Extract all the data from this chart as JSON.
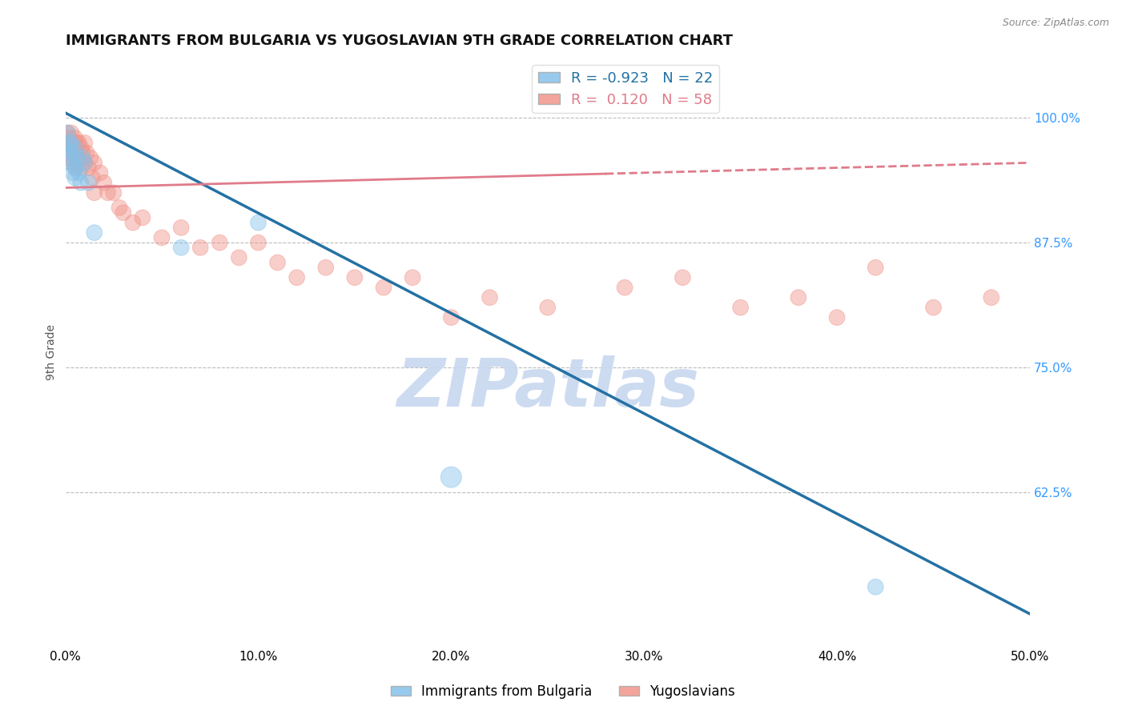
{
  "title": "IMMIGRANTS FROM BULGARIA VS YUGOSLAVIAN 9TH GRADE CORRELATION CHART",
  "source_text": "Source: ZipAtlas.com",
  "ylabel": "9th Grade",
  "xlim": [
    0.0,
    0.5
  ],
  "ylim": [
    0.47,
    1.06
  ],
  "xtick_labels": [
    "0.0%",
    "10.0%",
    "20.0%",
    "30.0%",
    "40.0%",
    "50.0%"
  ],
  "xtick_vals": [
    0.0,
    0.1,
    0.2,
    0.3,
    0.4,
    0.5
  ],
  "ytick_labels_right": [
    "62.5%",
    "75.0%",
    "87.5%",
    "100.0%"
  ],
  "ytick_vals_right": [
    0.625,
    0.75,
    0.875,
    1.0
  ],
  "hline_vals": [
    0.625,
    0.75,
    0.875,
    1.0
  ],
  "legend_r_blue": "-0.923",
  "legend_n_blue": "22",
  "legend_r_pink": "0.120",
  "legend_n_pink": "58",
  "blue_color": "#85c1e9",
  "pink_color": "#f1948a",
  "blue_line_color": "#2471a3",
  "pink_line_color": "#e07b8a",
  "watermark": "ZIPatlas",
  "watermark_color": "#c8d8f0",
  "blue_line_x0": 0.0,
  "blue_line_y0": 1.005,
  "blue_line_x1": 0.5,
  "blue_line_y1": 0.503,
  "pink_line_solid_x0": 0.0,
  "pink_line_solid_y0": 0.93,
  "pink_line_solid_x1": 0.28,
  "pink_line_solid_y1": 0.944,
  "pink_line_dash_x0": 0.28,
  "pink_line_dash_y0": 0.944,
  "pink_line_dash_x1": 0.5,
  "pink_line_dash_y1": 0.955,
  "blue_scatter_x": [
    0.001,
    0.001,
    0.002,
    0.002,
    0.003,
    0.003,
    0.004,
    0.004,
    0.005,
    0.005,
    0.005,
    0.006,
    0.007,
    0.008,
    0.009,
    0.01,
    0.012,
    0.015,
    0.06,
    0.1,
    0.2,
    0.42
  ],
  "blue_scatter_y": [
    0.97,
    0.985,
    0.975,
    0.96,
    0.975,
    0.955,
    0.965,
    0.945,
    0.97,
    0.95,
    0.94,
    0.96,
    0.945,
    0.935,
    0.96,
    0.955,
    0.935,
    0.885,
    0.87,
    0.895,
    0.64,
    0.53
  ],
  "blue_scatter_sizes": [
    200,
    200,
    200,
    200,
    200,
    200,
    200,
    200,
    200,
    200,
    200,
    200,
    200,
    200,
    200,
    200,
    200,
    200,
    200,
    200,
    350,
    200
  ],
  "pink_scatter_x": [
    0.001,
    0.001,
    0.002,
    0.002,
    0.003,
    0.003,
    0.003,
    0.004,
    0.004,
    0.005,
    0.005,
    0.005,
    0.006,
    0.006,
    0.007,
    0.007,
    0.008,
    0.008,
    0.009,
    0.01,
    0.01,
    0.011,
    0.012,
    0.013,
    0.014,
    0.015,
    0.015,
    0.018,
    0.02,
    0.022,
    0.025,
    0.028,
    0.03,
    0.035,
    0.04,
    0.05,
    0.06,
    0.07,
    0.08,
    0.09,
    0.1,
    0.11,
    0.12,
    0.135,
    0.15,
    0.165,
    0.18,
    0.2,
    0.22,
    0.25,
    0.29,
    0.32,
    0.35,
    0.38,
    0.4,
    0.42,
    0.45,
    0.48
  ],
  "pink_scatter_y": [
    0.975,
    0.985,
    0.98,
    0.965,
    0.97,
    0.985,
    0.96,
    0.975,
    0.955,
    0.98,
    0.965,
    0.95,
    0.975,
    0.955,
    0.975,
    0.96,
    0.97,
    0.95,
    0.965,
    0.975,
    0.955,
    0.965,
    0.95,
    0.96,
    0.94,
    0.955,
    0.925,
    0.945,
    0.935,
    0.925,
    0.925,
    0.91,
    0.905,
    0.895,
    0.9,
    0.88,
    0.89,
    0.87,
    0.875,
    0.86,
    0.875,
    0.855,
    0.84,
    0.85,
    0.84,
    0.83,
    0.84,
    0.8,
    0.82,
    0.81,
    0.83,
    0.84,
    0.81,
    0.82,
    0.8,
    0.85,
    0.81,
    0.82
  ],
  "pink_scatter_sizes": [
    200,
    200,
    200,
    200,
    200,
    200,
    200,
    200,
    200,
    200,
    200,
    200,
    200,
    200,
    200,
    200,
    200,
    200,
    200,
    200,
    200,
    200,
    200,
    200,
    200,
    200,
    200,
    200,
    200,
    200,
    200,
    200,
    200,
    200,
    200,
    200,
    200,
    200,
    200,
    200,
    200,
    200,
    200,
    200,
    200,
    200,
    200,
    200,
    200,
    200,
    200,
    200,
    200,
    200,
    200,
    200,
    200,
    200
  ]
}
